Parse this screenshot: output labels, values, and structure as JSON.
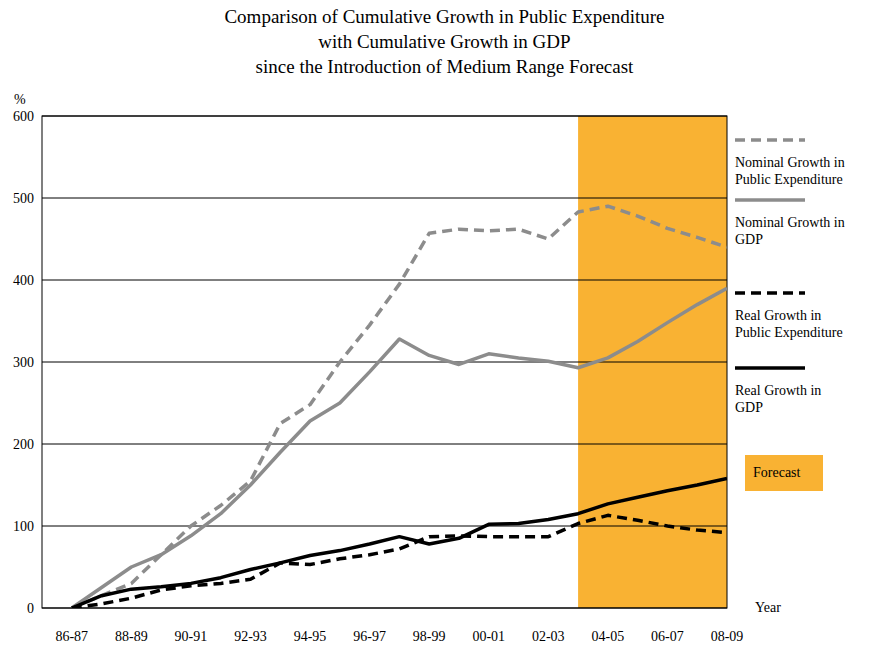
{
  "chart_data": {
    "type": "line",
    "title": "Comparison of Cumulative Growth in Public Expenditure\nwith Cumulative Growth in GDP\nsince the Introduction of Medium Range Forecast",
    "y_label": "%",
    "x_label": "Year",
    "categories": [
      "86-87",
      null,
      "88-89",
      null,
      "90-91",
      null,
      "92-93",
      null,
      "94-95",
      null,
      "96-97",
      null,
      "98-99",
      null,
      "00-01",
      null,
      "02-03",
      null,
      "04-05",
      null,
      "06-07",
      null,
      "08-09"
    ],
    "ylim": [
      0,
      600
    ],
    "yticks": [
      0,
      100,
      200,
      300,
      400,
      500,
      600
    ],
    "grid": true,
    "legend": "right",
    "forecast": {
      "label": "Forecast",
      "from": 17,
      "to": 22,
      "color": "#f9b233"
    },
    "series": [
      {
        "name": "Nominal Growth in\nPublic Expenditure",
        "color": "#8c8c8c",
        "line_style": "dashed",
        "values": [
          0,
          15,
          30,
          65,
          100,
          125,
          155,
          225,
          248,
          300,
          345,
          395,
          457,
          462,
          460,
          462,
          450,
          483,
          490,
          478,
          463,
          452,
          440
        ]
      },
      {
        "name": "Nominal Growth in\nGDP",
        "color": "#8c8c8c",
        "line_style": "solid",
        "values": [
          0,
          25,
          50,
          65,
          88,
          115,
          150,
          190,
          228,
          250,
          288,
          328,
          308,
          297,
          310,
          305,
          301,
          293,
          305,
          325,
          348,
          370,
          390
        ]
      },
      {
        "name": "Real Growth in\nPublic Expenditure",
        "color": "#000000",
        "line_style": "dashed",
        "values": [
          0,
          5,
          12,
          22,
          27,
          30,
          35,
          55,
          53,
          60,
          65,
          72,
          87,
          88,
          87,
          87,
          87,
          103,
          113,
          107,
          100,
          95,
          92
        ]
      },
      {
        "name": "Real Growth in\nGDP",
        "color": "#000000",
        "line_style": "solid",
        "values": [
          0,
          15,
          23,
          26,
          30,
          37,
          47,
          55,
          64,
          70,
          78,
          87,
          78,
          85,
          102,
          103,
          108,
          115,
          127,
          135,
          143,
          150,
          158
        ]
      }
    ]
  }
}
